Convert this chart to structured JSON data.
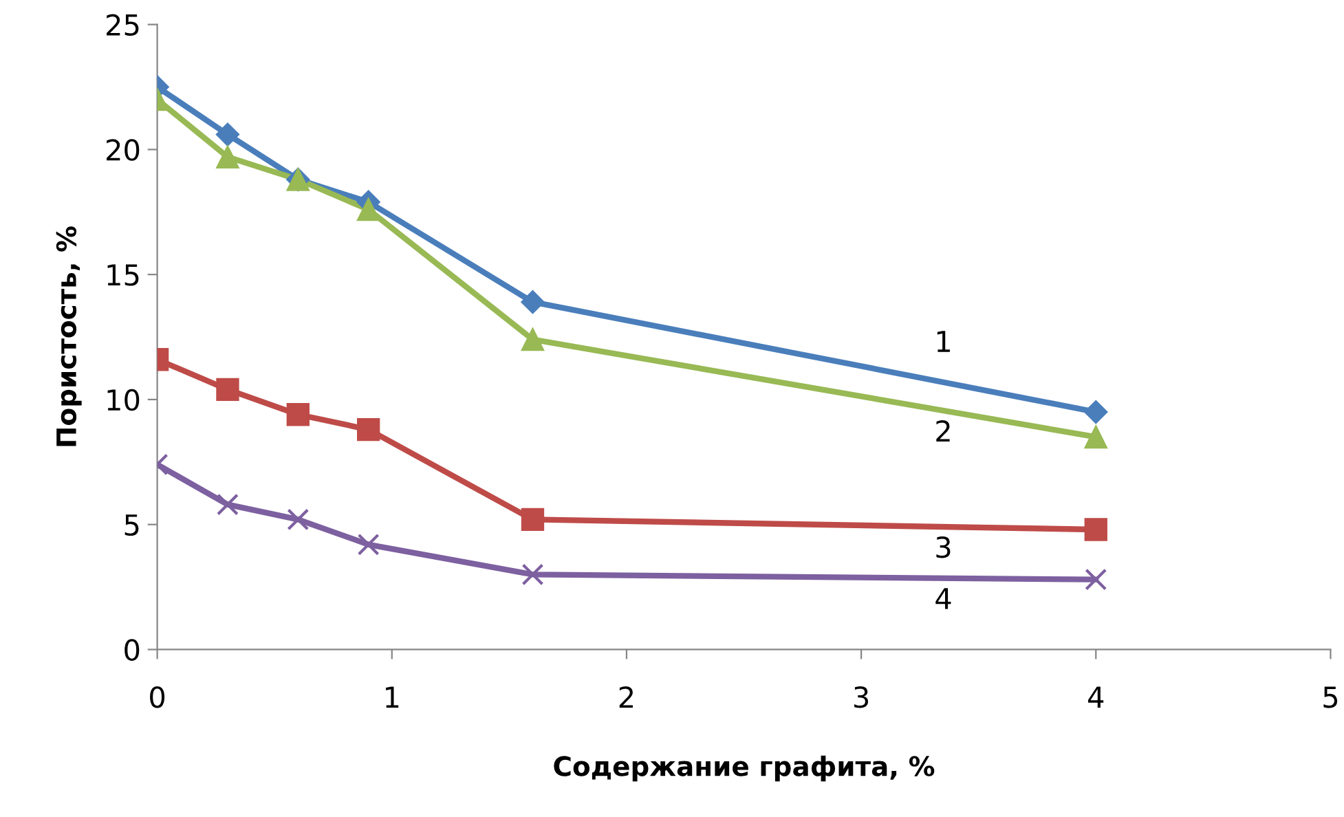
{
  "chart_data": {
    "type": "line",
    "xlabel": "Содержание графита, %",
    "ylabel": "Пористость, %",
    "x": [
      0,
      0.3,
      0.6,
      0.9,
      1.6,
      4
    ],
    "xlim": [
      0,
      5
    ],
    "xticks": [
      0,
      1,
      2,
      3,
      4,
      5
    ],
    "ylim": [
      0,
      25
    ],
    "yticks": [
      0,
      5,
      10,
      15,
      20,
      25
    ],
    "series": [
      {
        "name": "1",
        "color": "#4a7ebb",
        "marker": "diamond",
        "values": [
          22.5,
          20.6,
          18.8,
          17.9,
          13.9,
          9.5
        ]
      },
      {
        "name": "2",
        "color": "#98b954",
        "marker": "triangle",
        "values": [
          22.0,
          19.7,
          18.8,
          17.6,
          12.4,
          8.5
        ]
      },
      {
        "name": "3",
        "color": "#be4b48",
        "marker": "square",
        "values": [
          11.6,
          10.4,
          9.4,
          8.8,
          5.2,
          4.8
        ]
      },
      {
        "name": "4",
        "color": "#7d60a0",
        "marker": "cross",
        "values": [
          7.4,
          5.8,
          5.2,
          4.2,
          3.0,
          2.8
        ]
      }
    ]
  }
}
